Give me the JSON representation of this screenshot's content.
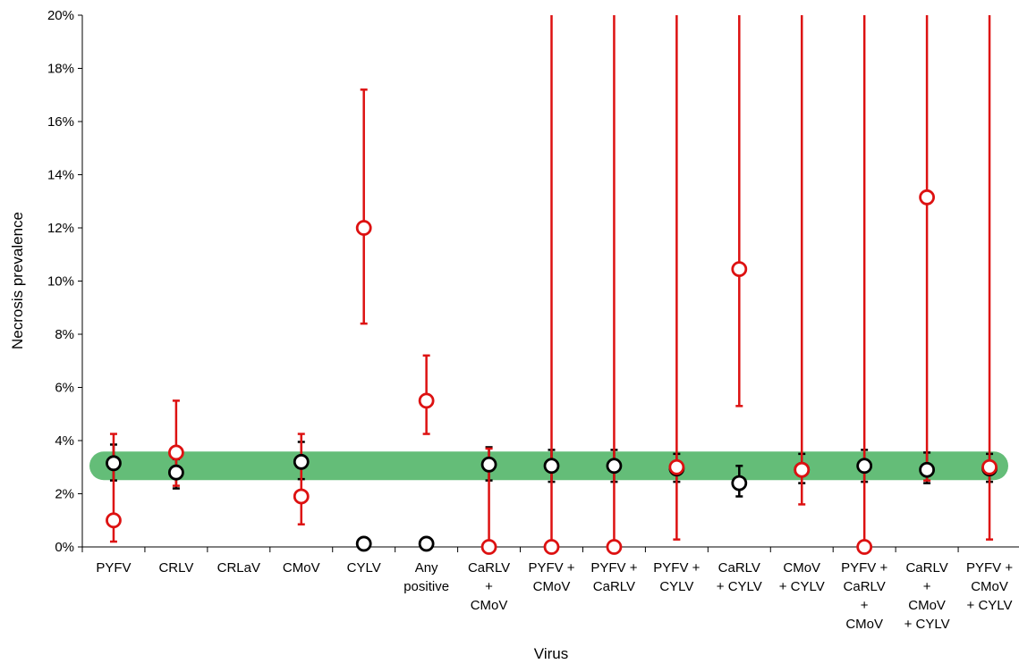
{
  "chart_data": {
    "type": "scatter",
    "xlabel": "Virus",
    "ylabel": "Necrosis prevalence",
    "ylim": [
      0,
      20
    ],
    "ytick_values": [
      0,
      2,
      4,
      6,
      8,
      10,
      12,
      14,
      16,
      18,
      20
    ],
    "ytick_labels": [
      "0%",
      "2%",
      "4%",
      "6%",
      "8%",
      "10%",
      "12%",
      "14%",
      "16%",
      "18%",
      "20%"
    ],
    "categories": [
      [
        "PYFV"
      ],
      [
        "CRLV"
      ],
      [
        "CRLaV"
      ],
      [
        "CMoV"
      ],
      [
        "CYLV"
      ],
      [
        "Any",
        "positive"
      ],
      [
        "CaRLV",
        "+",
        "CMoV"
      ],
      [
        "PYFV +",
        "CMoV"
      ],
      [
        "PYFV +",
        "CaRLV"
      ],
      [
        "PYFV +",
        "CYLV"
      ],
      [
        "CaRLV",
        "+ CYLV"
      ],
      [
        "CMoV",
        "+ CYLV"
      ],
      [
        "PYFV +",
        "CaRLV",
        "+",
        "CMoV"
      ],
      [
        "CaRLV",
        "+",
        "CMoV",
        "+ CYLV"
      ],
      [
        "PYFV +",
        "CMoV",
        "+ CYLV"
      ]
    ],
    "band": {
      "value": 3.05,
      "color": "#64bd78"
    },
    "series": [
      {
        "color": "#000000",
        "points": [
          {
            "x": 0,
            "y": 3.15,
            "lo": 2.5,
            "hi": 3.85
          },
          {
            "x": 1,
            "y": 2.8,
            "lo": 2.2,
            "hi": 3.3
          },
          {
            "x": 3,
            "y": 3.2,
            "lo": 2.55,
            "hi": 3.95
          },
          {
            "x": 4,
            "y": 0.12,
            "lo": 0.05,
            "hi": 0.25
          },
          {
            "x": 5,
            "y": 0.12,
            "lo": 0.05,
            "hi": 0.35
          },
          {
            "x": 6,
            "y": 3.1,
            "lo": 2.5,
            "hi": 3.75
          },
          {
            "x": 7,
            "y": 3.05,
            "lo": 2.45,
            "hi": 3.65
          },
          {
            "x": 8,
            "y": 3.05,
            "lo": 2.45,
            "hi": 3.65
          },
          {
            "x": 9,
            "y": 2.95,
            "lo": 2.45,
            "hi": 3.5
          },
          {
            "x": 10,
            "y": 2.4,
            "lo": 1.9,
            "hi": 3.05
          },
          {
            "x": 11,
            "y": 2.9,
            "lo": 2.4,
            "hi": 3.5
          },
          {
            "x": 12,
            "y": 3.05,
            "lo": 2.45,
            "hi": 3.65
          },
          {
            "x": 13,
            "y": 2.9,
            "lo": 2.4,
            "hi": 3.55
          },
          {
            "x": 14,
            "y": 2.95,
            "lo": 2.45,
            "hi": 3.5
          }
        ]
      },
      {
        "color": "#dd1111",
        "points": [
          {
            "x": 0,
            "y": 1.0,
            "lo": 0.2,
            "hi": 4.25
          },
          {
            "x": 1,
            "y": 3.55,
            "lo": 2.3,
            "hi": 5.5
          },
          {
            "x": 3,
            "y": 1.9,
            "lo": 0.85,
            "hi": 4.25
          },
          {
            "x": 4,
            "y": 12.0,
            "lo": 8.4,
            "hi": 17.2
          },
          {
            "x": 5,
            "y": 5.5,
            "lo": 4.25,
            "hi": 7.2
          },
          {
            "x": 6,
            "y": 0.0,
            "lo": 0.0,
            "hi": 3.7
          },
          {
            "x": 7,
            "y": 0.0,
            "lo": 0.0,
            "hi": 20
          },
          {
            "x": 8,
            "y": 0.0,
            "lo": 0.0,
            "hi": 20
          },
          {
            "x": 9,
            "y": 3.0,
            "lo": 0.28,
            "hi": 20
          },
          {
            "x": 10,
            "y": 10.45,
            "lo": 5.3,
            "hi": 20
          },
          {
            "x": 11,
            "y": 2.9,
            "lo": 1.6,
            "hi": 20
          },
          {
            "x": 12,
            "y": 0.0,
            "lo": 0.0,
            "hi": 20
          },
          {
            "x": 13,
            "y": 13.15,
            "lo": 2.5,
            "hi": 20
          },
          {
            "x": 14,
            "y": 3.0,
            "lo": 0.28,
            "hi": 20
          }
        ]
      }
    ]
  }
}
